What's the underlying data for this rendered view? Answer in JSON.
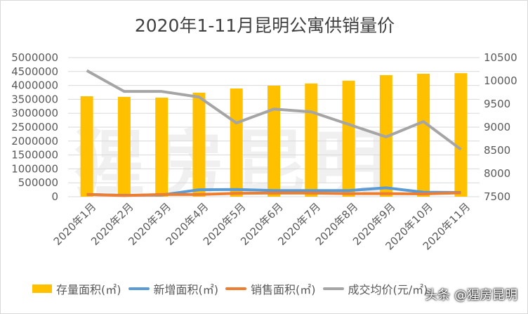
{
  "chart_data": {
    "type": "bar",
    "title": "2020年1-11月昆明公寓供销量价",
    "categories": [
      "2020年1月",
      "2020年2月",
      "2020年3月",
      "2020年4月",
      "2020年5月",
      "2020年6月",
      "2020年7月",
      "2020年8月",
      "2020年9月",
      "2020年10月",
      "2020年11月"
    ],
    "left_axis": {
      "ylim": [
        0,
        5000000
      ],
      "ticks": [
        0,
        500000,
        1000000,
        1500000,
        2000000,
        2500000,
        3000000,
        3500000,
        4000000,
        4500000,
        5000000
      ]
    },
    "right_axis": {
      "ylim": [
        7500,
        10500
      ],
      "ticks": [
        7500,
        8000,
        8500,
        9000,
        9500,
        10000,
        10500
      ]
    },
    "grid": true,
    "legend_position": "bottom",
    "series": [
      {
        "name": "存量面积(㎡)",
        "type": "bar",
        "axis": "left",
        "color": "#ffc000",
        "values": [
          3610000,
          3590000,
          3560000,
          3740000,
          3890000,
          3990000,
          4070000,
          4170000,
          4370000,
          4420000,
          4440000
        ]
      },
      {
        "name": "新增面积(㎡)",
        "type": "line",
        "axis": "left",
        "color": "#5b9bd5",
        "values": [
          80000,
          50000,
          60000,
          250000,
          260000,
          220000,
          220000,
          220000,
          320000,
          160000,
          150000
        ]
      },
      {
        "name": "销售面积(㎡)",
        "type": "line",
        "axis": "left",
        "color": "#ed7d31",
        "values": [
          80000,
          40000,
          80000,
          80000,
          120000,
          130000,
          130000,
          110000,
          110000,
          100000,
          140000
        ]
      },
      {
        "name": "成交均价(元/㎡)",
        "type": "line",
        "axis": "right",
        "color": "#a5a5a5",
        "values": [
          10220,
          9770,
          9770,
          9650,
          9090,
          9390,
          9330,
          9060,
          8790,
          9120,
          8520
        ]
      }
    ]
  },
  "watermark": "猩房昆明",
  "credit": "头条 @猩房昆明"
}
